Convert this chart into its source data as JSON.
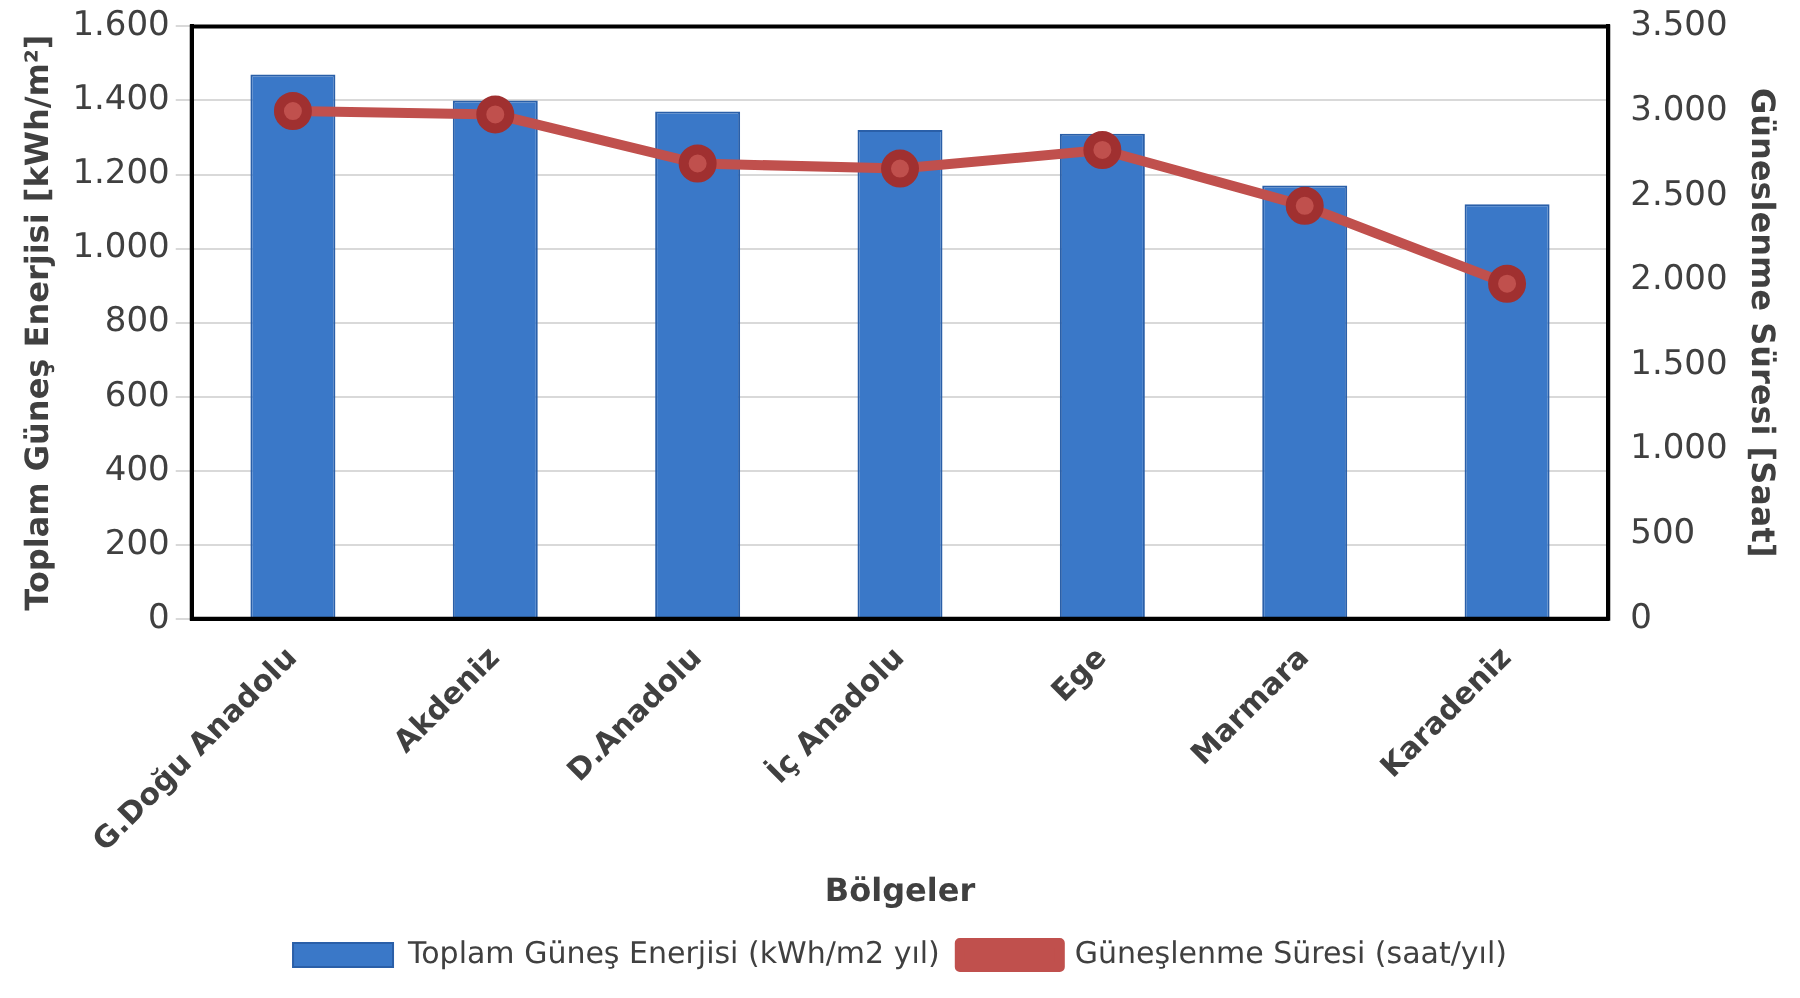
{
  "chart_data": {
    "type": "bar",
    "xlabel": "Bölgeler",
    "ylabel": "Toplam Güneş Enerjisi [kWh/m²]",
    "y2label": "Güneslenme Süresi [Saat]",
    "categories": [
      "G.Doğu Anadolu",
      "Akdeniz",
      "D.Anadolu",
      "İç Anadolu",
      "Ege",
      "Marmara",
      "Karadeniz"
    ],
    "series": [
      {
        "name": "Toplam Güneş Enerjisi (kWh/m2 yıl)",
        "color": "#3a78c8",
        "values": [
          1470,
          1400,
          1370,
          1320,
          1310,
          1170,
          1120
        ]
      },
      {
        "name": "Güneşlenme Süresi (saat/yıl)",
        "type": "line",
        "axis": "y2",
        "color": "#c0504d",
        "values": [
          3000,
          2980,
          2690,
          2660,
          2770,
          2440,
          1980
        ]
      }
    ],
    "ylim": [
      0,
      1600
    ],
    "yticks": [
      {
        "value": 0,
        "label": "0"
      },
      {
        "value": 200,
        "label": "200"
      },
      {
        "value": 400,
        "label": "400"
      },
      {
        "value": 600,
        "label": "600"
      },
      {
        "value": 800,
        "label": "800"
      },
      {
        "value": 1000,
        "label": "1.000"
      },
      {
        "value": 1200,
        "label": "1.200"
      },
      {
        "value": 1400,
        "label": "1.400"
      },
      {
        "value": 1600,
        "label": "1.600"
      }
    ],
    "y2lim": [
      0,
      3500
    ],
    "y2ticks": [
      {
        "value": 0,
        "label": "0"
      },
      {
        "value": 500,
        "label": "500"
      },
      {
        "value": 1000,
        "label": "1.000"
      },
      {
        "value": 1500,
        "label": "1.500"
      },
      {
        "value": 2000,
        "label": "2.000"
      },
      {
        "value": 2500,
        "label": "2.500"
      },
      {
        "value": 3000,
        "label": "3.000"
      },
      {
        "value": 3500,
        "label": "3.500"
      }
    ],
    "grid": "y",
    "legend": "bottom",
    "marker": "circle"
  }
}
